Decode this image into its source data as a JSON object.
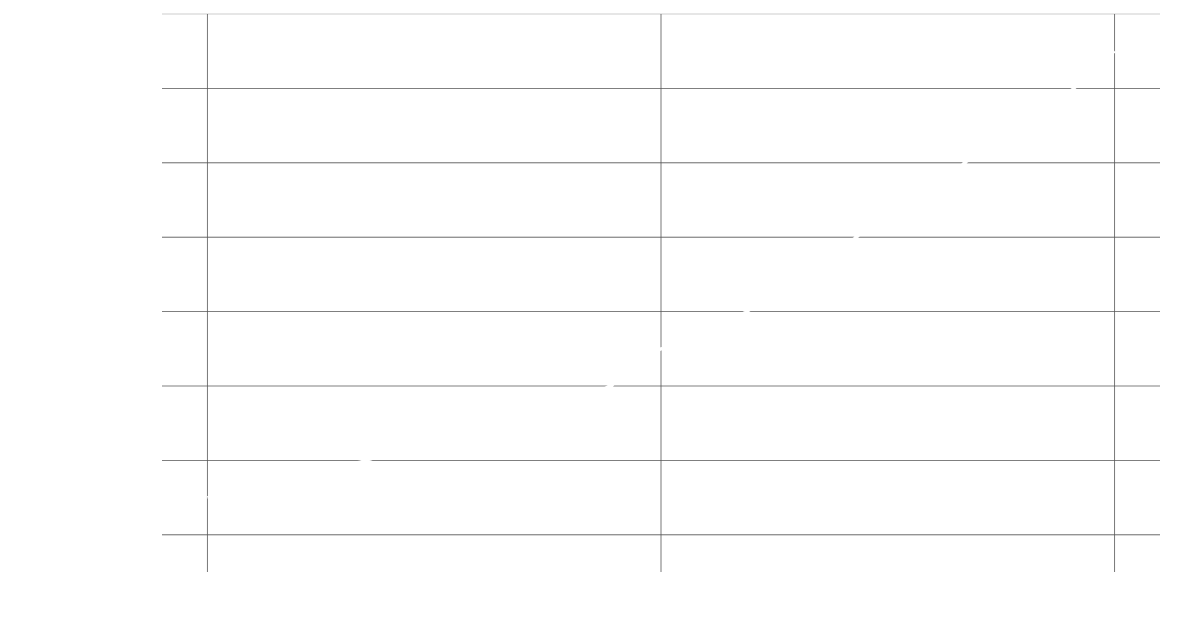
{
  "chart_data": {
    "type": "line",
    "x": [
      0,
      0.35,
      0.89,
      1,
      1.19,
      1.43,
      1.67,
      1.91,
      2
    ],
    "values": [
      0.5,
      1,
      2,
      2.5,
      3,
      4,
      5,
      6,
      6.5
    ],
    "color": "#ffffff",
    "xlim": [
      -0.1,
      2.1
    ],
    "xticks": [
      0,
      1,
      2
    ],
    "ylim": [
      -0.5,
      7
    ],
    "yticks": [
      0,
      1,
      2,
      3,
      4,
      5,
      6,
      7
    ],
    "grid": true,
    "grid_color": "#555555"
  }
}
